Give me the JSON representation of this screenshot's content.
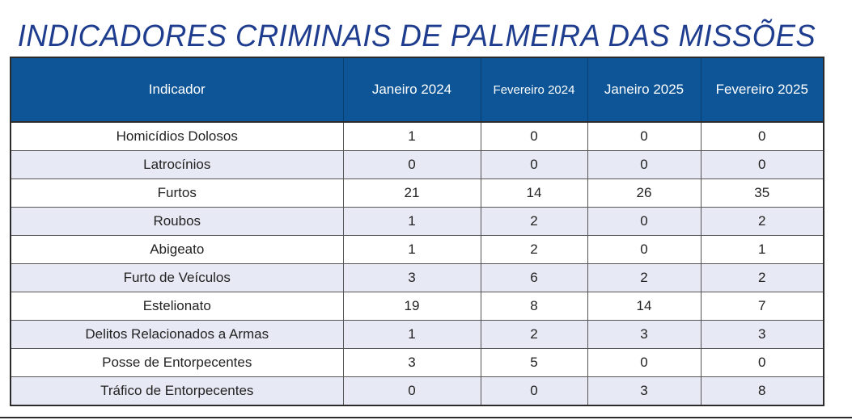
{
  "title": "INDICADORES CRIMINAIS DE PALMEIRA DAS MISSÕES",
  "table": {
    "headers": [
      "Indicador",
      "Janeiro 2024",
      "Fevereiro 2024",
      "Janeiro 2025",
      "Fevereiro 2025"
    ],
    "rows": [
      [
        "Homicídios Dolosos",
        "1",
        "0",
        "0",
        "0"
      ],
      [
        "Latrocínios",
        "0",
        "0",
        "0",
        "0"
      ],
      [
        "Furtos",
        "21",
        "14",
        "26",
        "35"
      ],
      [
        "Roubos",
        "1",
        "2",
        "0",
        "2"
      ],
      [
        "Abigeato",
        "1",
        "2",
        "0",
        "1"
      ],
      [
        "Furto de Veículos",
        "3",
        "6",
        "2",
        "2"
      ],
      [
        "Estelionato",
        "19",
        "8",
        "14",
        "7"
      ],
      [
        "Delitos Relacionados a Armas",
        "1",
        "2",
        "3",
        "3"
      ],
      [
        "Posse de Entorpecentes",
        "3",
        "5",
        "0",
        "0"
      ],
      [
        "Tráfico de Entorpecentes",
        "0",
        "0",
        "3",
        "8"
      ]
    ]
  },
  "colors": {
    "header_bg": "#0d5597",
    "title": "#1f3d8f",
    "alt_row": "#e7eaf4"
  }
}
